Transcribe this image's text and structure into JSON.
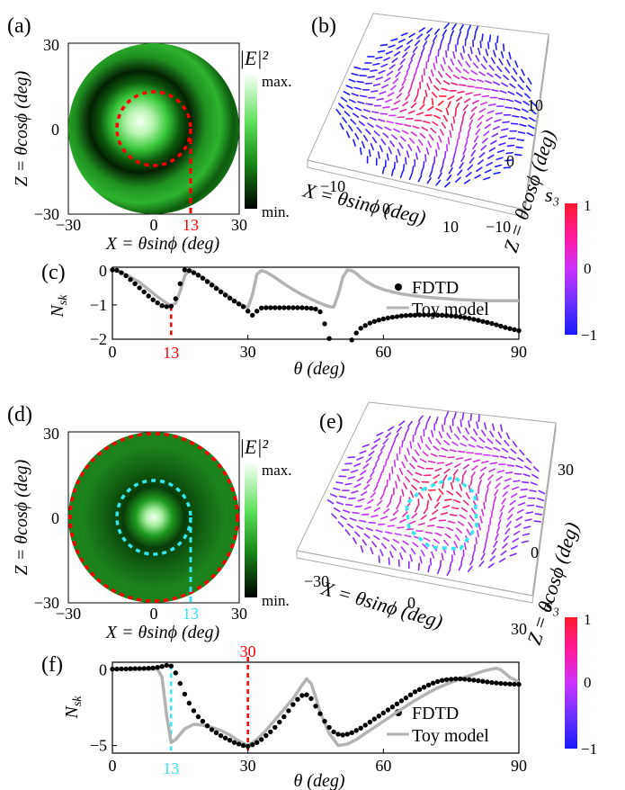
{
  "panel_labels": [
    "(a)",
    "(b)",
    "(c)",
    "(d)",
    "(e)",
    "(f)"
  ],
  "colors": {
    "fdtd": "#000000",
    "toy": "#b3b3b3",
    "red_marker": "#ff0000",
    "cyan_marker": "#33e6f0",
    "s3_pos": "#ff1a33",
    "s3_mid": "#cc33ff",
    "s3_neg": "#1a1aff",
    "field_max": "#f0fff0",
    "field_mid": "#1fb81f",
    "field_min": "#000000"
  },
  "intensity_maps": [
    {
      "panel": "(a)",
      "x_ticks": [
        "−30",
        "0",
        "30"
      ],
      "y_ticks": [
        "30",
        "0",
        "−30"
      ],
      "marker_label": "13",
      "xlabel": "X = θsinϕ (deg)",
      "ylabel": "Z = θcosϕ (deg)",
      "colorbar_title": "|E|²",
      "colorbar_max": "max.",
      "colorbar_min": "min."
    },
    {
      "panel": "(d)",
      "x_ticks": [
        "−30",
        "0",
        "30"
      ],
      "y_ticks": [
        "30",
        "0",
        "−30"
      ],
      "marker_label": "13",
      "xlabel": "X = θsinϕ (deg)",
      "ylabel": "Z = θcosϕ (deg)",
      "colorbar_title": "|E|²",
      "colorbar_max": "max.",
      "colorbar_min": "min."
    }
  ],
  "vector_plots": [
    {
      "panel": "(b)",
      "x_ticks": [
        "−10",
        "0",
        "10"
      ],
      "z_ticks": [
        "−10",
        "0",
        "10"
      ],
      "xlabel": "X = θsinϕ (deg)",
      "zlabel": "Z = θcosϕ (deg)",
      "colorbar_title": "s₃",
      "colorbar_ticks": [
        "1",
        "0",
        "−1"
      ]
    },
    {
      "panel": "(e)",
      "x_ticks": [
        "−30",
        "0",
        "30"
      ],
      "z_ticks": [
        "0",
        "30"
      ],
      "xlabel": "X = θsinϕ (deg)",
      "zlabel": "Z = θcosϕ (deg)",
      "colorbar_title": "s₃",
      "colorbar_ticks": [
        "1",
        "0",
        "−1"
      ]
    }
  ],
  "chart_data": [
    {
      "type": "line",
      "panel": "(c)",
      "xlabel": "θ (deg)",
      "ylabel": "N_sk",
      "xlim": [
        0,
        90
      ],
      "ylim": [
        -2,
        0.1
      ],
      "x_ticks": [
        "0",
        "30",
        "60",
        "90"
      ],
      "y_ticks": [
        "0",
        "−1",
        "−2"
      ],
      "marker": {
        "x": 13,
        "label": "13"
      },
      "series": [
        {
          "name": "FDTD",
          "style": "dots",
          "x": [
            0,
            1,
            2,
            3,
            4,
            5,
            6,
            7,
            8,
            9,
            10,
            11,
            12,
            13,
            14,
            15,
            16,
            17,
            18,
            19,
            20,
            21,
            22,
            23,
            24,
            25,
            26,
            27,
            28,
            29,
            30,
            31,
            32,
            33,
            34,
            35,
            36,
            37,
            38,
            39,
            40,
            41,
            42,
            43,
            44,
            45,
            46,
            47,
            48,
            49,
            50,
            51,
            52,
            53,
            54,
            55,
            56,
            57,
            58,
            59,
            60,
            61,
            62,
            63,
            64,
            65,
            66,
            67,
            68,
            69,
            70,
            71,
            72,
            73,
            74,
            75,
            76,
            77,
            78,
            79,
            80,
            81,
            82,
            83,
            84,
            85,
            86,
            87,
            88,
            89,
            90
          ],
          "y": [
            0.02,
            0.01,
            -0.06,
            -0.15,
            -0.26,
            -0.38,
            -0.5,
            -0.62,
            -0.74,
            -0.85,
            -0.94,
            -1.02,
            -1.05,
            -1.04,
            -0.82,
            -0.38,
            0.02,
            0.0,
            -0.06,
            -0.13,
            -0.22,
            -0.32,
            -0.42,
            -0.52,
            -0.62,
            -0.71,
            -0.8,
            -0.89,
            -0.97,
            -1.05,
            -1.18,
            -1.3,
            -1.18,
            -1.09,
            -1.08,
            -1.08,
            -1.08,
            -1.08,
            -1.08,
            -1.08,
            -1.08,
            -1.08,
            -1.08,
            -1.09,
            -1.1,
            -1.12,
            -1.2,
            -1.55,
            -1.98,
            null,
            null,
            null,
            null,
            -2.02,
            -1.82,
            -1.68,
            -1.6,
            -1.53,
            -1.48,
            -1.44,
            -1.41,
            -1.38,
            -1.36,
            -1.34,
            -1.32,
            -1.31,
            -1.3,
            -1.3,
            -1.29,
            -1.29,
            -1.29,
            -1.29,
            -1.3,
            -1.3,
            -1.31,
            -1.32,
            -1.33,
            -1.35,
            -1.37,
            -1.39,
            -1.42,
            -1.45,
            -1.48,
            -1.51,
            -1.54,
            -1.58,
            -1.62,
            -1.66,
            -1.69,
            -1.72,
            -1.75
          ]
        },
        {
          "name": "Toy model",
          "style": "line",
          "x": [
            0,
            2,
            4,
            6,
            8,
            10,
            12,
            13,
            14,
            15,
            16,
            17,
            18,
            20,
            22,
            24,
            26,
            28,
            30,
            31,
            32,
            33,
            34,
            36,
            38,
            40,
            42,
            44,
            46,
            48,
            49,
            50,
            51,
            52,
            53,
            54,
            55,
            56,
            58,
            60,
            62,
            64,
            66,
            68,
            70,
            72,
            74,
            76,
            78,
            80,
            82,
            84,
            86,
            88,
            90
          ],
          "y": [
            0.02,
            -0.05,
            -0.18,
            -0.34,
            -0.55,
            -0.76,
            -0.95,
            -1.02,
            -0.95,
            -0.6,
            -0.15,
            0.02,
            -0.04,
            -0.2,
            -0.38,
            -0.58,
            -0.78,
            -0.96,
            -1.08,
            -0.7,
            -0.1,
            0.0,
            -0.04,
            -0.2,
            -0.38,
            -0.55,
            -0.7,
            -0.83,
            -0.95,
            -1.05,
            -1.06,
            -0.7,
            -0.2,
            0.02,
            0.0,
            -0.08,
            -0.2,
            -0.3,
            -0.45,
            -0.55,
            -0.62,
            -0.68,
            -0.72,
            -0.75,
            -0.78,
            -0.8,
            -0.82,
            -0.84,
            -0.85,
            -0.86,
            -0.87,
            -0.88,
            -0.88,
            -0.88,
            -0.88
          ]
        }
      ]
    },
    {
      "type": "line",
      "panel": "(f)",
      "xlabel": "θ (deg)",
      "ylabel": "N_sk",
      "xlim": [
        0,
        90
      ],
      "ylim": [
        -5.5,
        0.5
      ],
      "x_ticks": [
        "0",
        "30",
        "60",
        "90"
      ],
      "y_ticks": [
        "0",
        "−5"
      ],
      "markers": [
        {
          "x": 13,
          "label": "13"
        },
        {
          "x": 30,
          "label": "30"
        }
      ],
      "series": [
        {
          "name": "FDTD",
          "style": "dots",
          "x": [
            0,
            1,
            2,
            3,
            4,
            5,
            6,
            7,
            8,
            9,
            10,
            11,
            12,
            13,
            14,
            15,
            16,
            17,
            18,
            19,
            20,
            21,
            22,
            23,
            24,
            25,
            26,
            27,
            28,
            29,
            30,
            31,
            32,
            33,
            34,
            35,
            36,
            37,
            38,
            39,
            40,
            41,
            42,
            43,
            44,
            45,
            46,
            47,
            48,
            49,
            50,
            51,
            52,
            53,
            54,
            55,
            56,
            57,
            58,
            59,
            60,
            61,
            62,
            63,
            64,
            65,
            66,
            67,
            68,
            69,
            70,
            71,
            72,
            73,
            74,
            75,
            76,
            77,
            78,
            79,
            80,
            81,
            82,
            83,
            84,
            85,
            86,
            87,
            88,
            89,
            90
          ],
          "y": [
            0.05,
            0.05,
            0.06,
            0.06,
            0.07,
            0.08,
            0.08,
            0.09,
            0.1,
            0.12,
            0.16,
            0.22,
            0.3,
            0.25,
            -0.2,
            -0.9,
            -1.6,
            -2.2,
            -2.7,
            -3.1,
            -3.4,
            -3.7,
            -3.95,
            -4.15,
            -4.35,
            -4.5,
            -4.65,
            -4.8,
            -4.9,
            -5.0,
            -5.05,
            -4.95,
            -4.8,
            -4.6,
            -4.35,
            -4.1,
            -3.8,
            -3.45,
            -3.1,
            -2.7,
            -2.3,
            -1.95,
            -1.7,
            -1.65,
            -1.9,
            -2.4,
            -2.9,
            -3.4,
            -3.8,
            -4.1,
            -4.25,
            -4.3,
            -4.25,
            -4.15,
            -4.0,
            -3.85,
            -3.65,
            -3.45,
            -3.25,
            -3.05,
            -2.85,
            -2.65,
            -2.45,
            -2.25,
            -2.05,
            -1.85,
            -1.65,
            -1.45,
            -1.3,
            -1.15,
            -1.0,
            -0.88,
            -0.78,
            -0.7,
            -0.65,
            -0.62,
            -0.6,
            -0.6,
            -0.62,
            -0.65,
            -0.68,
            -0.72,
            -0.76,
            -0.8,
            -0.84,
            -0.87,
            -0.9,
            -0.92,
            -0.94,
            -0.95,
            -0.96
          ]
        },
        {
          "name": "Toy model",
          "style": "line",
          "x": [
            0,
            4,
            8,
            10,
            11,
            12,
            13,
            14,
            16,
            18,
            20,
            22,
            24,
            26,
            28,
            30,
            32,
            34,
            36,
            38,
            40,
            42,
            43,
            44,
            45,
            46,
            48,
            50,
            52,
            54,
            56,
            58,
            60,
            62,
            64,
            66,
            68,
            70,
            72,
            74,
            76,
            78,
            80,
            82,
            84,
            85,
            86,
            88,
            90
          ],
          "y": [
            0.05,
            0.05,
            0.05,
            0.04,
            -0.5,
            -3.0,
            -4.8,
            -4.6,
            -3.9,
            -3.6,
            -3.65,
            -3.8,
            -4.0,
            -4.3,
            -4.7,
            -5.0,
            -4.6,
            -4.0,
            -3.3,
            -2.6,
            -1.9,
            -1.0,
            -0.6,
            -0.9,
            -1.8,
            -2.8,
            -4.2,
            -5.0,
            -4.9,
            -4.6,
            -4.2,
            -3.8,
            -3.4,
            -3.0,
            -2.6,
            -2.2,
            -1.85,
            -1.5,
            -1.2,
            -0.95,
            -0.7,
            -0.5,
            -0.3,
            -0.1,
            0.05,
            0.1,
            0.0,
            -0.5,
            -0.8
          ]
        }
      ]
    }
  ]
}
